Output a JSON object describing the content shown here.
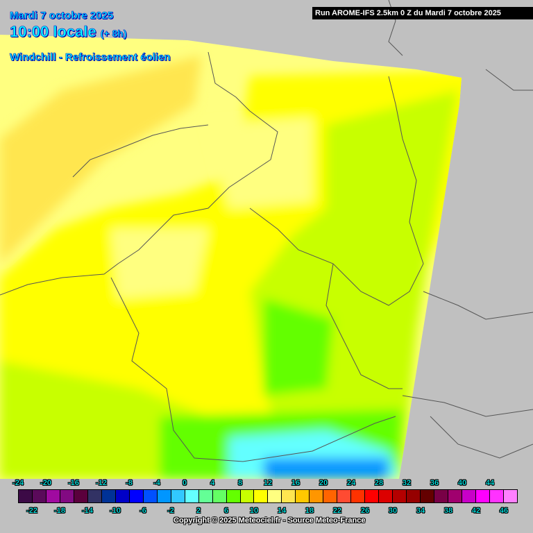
{
  "header": {
    "date": "Mardi 7 octobre 2025",
    "time": "10:00 locale",
    "forecast_offset": "(+ 8h)",
    "parameter": "Windchill - Refroissement éolien",
    "run_info": "Run AROME-IFS 2.5km 0 Z du Mardi 7 octobre 2025"
  },
  "legend": {
    "colors": [
      "#3c0a46",
      "#5a0a5a",
      "#a00aa0",
      "#820a82",
      "#5a003c",
      "#323264",
      "#003296",
      "#0000c8",
      "#0000ff",
      "#0050ff",
      "#0096ff",
      "#32c8ff",
      "#64ffff",
      "#64ff96",
      "#64ff64",
      "#64ff00",
      "#c8ff00",
      "#ffff00",
      "#ffff80",
      "#ffe650",
      "#ffc800",
      "#ff9600",
      "#ff6400",
      "#ff4b32",
      "#ff3200",
      "#ff0000",
      "#dc0000",
      "#b40000",
      "#960000",
      "#640000",
      "#780046",
      "#a0006e",
      "#c800c8",
      "#ff00ff",
      "#ff32ff",
      "#ff80ff"
    ],
    "top_labels": [
      "-24",
      "-20",
      "-16",
      "-12",
      "-8",
      "-4",
      "0",
      "4",
      "8",
      "12",
      "16",
      "20",
      "24",
      "28",
      "32",
      "36",
      "40",
      "44"
    ],
    "bottom_labels": [
      "-22",
      "-18",
      "-14",
      "-10",
      "-6",
      "-2",
      "2",
      "6",
      "10",
      "14",
      "18",
      "22",
      "26",
      "30",
      "34",
      "38",
      "42",
      "46"
    ]
  },
  "footer": {
    "copyright": "Copyright © 2025 Meteociel.fr - Source Meteo-France"
  },
  "colors": {
    "background": "#c0c0c0",
    "title": "#00ffff"
  }
}
